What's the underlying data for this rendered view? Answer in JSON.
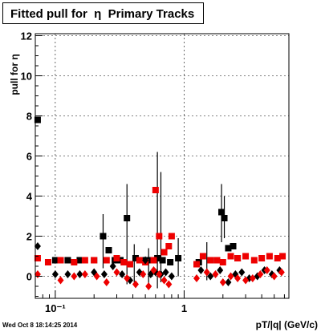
{
  "title": "Fitted pull for  η  Primary Tracks",
  "timestamp": "Wed Oct  8 18:14:25 2014",
  "colors": {
    "series1": "#000000",
    "series2": "#ee0000",
    "grid": "#000000",
    "frame": "#000000"
  },
  "chart_data": {
    "type": "scatter",
    "title": "Fitted pull for  η  Primary Tracks",
    "xlabel": "pT/|q| (GeV/c)",
    "ylabel": "pull for η",
    "xscale": "log",
    "xlim": [
      0.07,
      6.5
    ],
    "ylim": [
      -1.1,
      12.1
    ],
    "xtick_labels": [
      "10⁻¹",
      "1"
    ],
    "ytick_labels": [
      "0",
      "2",
      "4",
      "6",
      "8",
      "10",
      "12"
    ],
    "grid": true,
    "series": [
      {
        "marker": "square",
        "color": "#000000",
        "x": [
          0.073,
          0.1,
          0.125,
          0.155,
          0.2,
          0.235,
          0.26,
          0.29,
          0.32,
          0.36,
          0.42,
          0.5,
          0.55,
          0.62,
          0.68,
          0.78,
          0.9,
          1.3,
          1.6,
          1.95,
          2.05,
          2.2,
          2.4,
          2.6
        ],
        "y": [
          7.8,
          0.8,
          0.8,
          0.8,
          0.8,
          2.0,
          1.3,
          0.8,
          0.8,
          2.9,
          0.9,
          0.8,
          0.8,
          0.9,
          0.8,
          0.7,
          0.9,
          0.7,
          0.8,
          3.2,
          2.9,
          1.4,
          1.5,
          0.9
        ]
      },
      {
        "marker": "square",
        "color": "#ee0000",
        "x": [
          0.073,
          0.088,
          0.11,
          0.14,
          0.17,
          0.2,
          0.25,
          0.3,
          0.34,
          0.38,
          0.45,
          0.5,
          0.58,
          0.6,
          0.64,
          0.7,
          0.76,
          0.8,
          1.25,
          1.4,
          1.6,
          1.8,
          2.0,
          2.3,
          2.6,
          3.0,
          3.5,
          4.0,
          4.6,
          5.3,
          5.8
        ],
        "y": [
          0.9,
          0.7,
          0.8,
          0.7,
          0.8,
          0.8,
          0.8,
          0.9,
          0.7,
          0.6,
          0.8,
          0.7,
          0.8,
          4.3,
          2.0,
          1.2,
          1.5,
          2.0,
          0.6,
          1.0,
          0.8,
          0.8,
          0.7,
          1.0,
          0.9,
          1.0,
          0.8,
          0.9,
          1.0,
          0.9,
          1.0
        ]
      },
      {
        "marker": "diamond",
        "color": "#000000",
        "x": [
          0.073,
          0.1,
          0.125,
          0.155,
          0.2,
          0.24,
          0.28,
          0.33,
          0.38,
          0.45,
          0.5,
          0.55,
          0.6,
          0.66,
          0.72,
          0.8,
          1.35,
          1.6,
          1.9,
          2.2,
          2.5,
          2.8,
          3.2,
          3.7,
          4.2,
          4.8,
          5.5
        ],
        "y": [
          1.5,
          0.1,
          0.1,
          0.1,
          0.2,
          0.1,
          0.5,
          0.1,
          -0.2,
          0.2,
          0.8,
          0.1,
          0.2,
          0.1,
          0.2,
          0.0,
          0.3,
          0.0,
          0.3,
          -0.3,
          0.1,
          0.2,
          -0.1,
          0.0,
          0.3,
          0.1,
          0.3
        ]
      },
      {
        "marker": "diamond",
        "color": "#ee0000",
        "x": [
          0.073,
          0.11,
          0.14,
          0.17,
          0.21,
          0.25,
          0.3,
          0.36,
          0.42,
          0.48,
          0.53,
          0.58,
          0.64,
          0.7,
          0.76,
          1.25,
          1.5,
          1.75,
          2.0,
          2.3,
          2.6,
          3.0,
          3.4,
          3.9,
          4.4,
          5.0,
          5.7
        ],
        "y": [
          0.1,
          -0.2,
          0.0,
          0.1,
          0.0,
          -0.3,
          0.2,
          -0.1,
          -0.4,
          0.1,
          -0.5,
          0.3,
          0.1,
          -0.2,
          -0.4,
          -0.1,
          0.2,
          0.1,
          -0.3,
          0.0,
          -0.1,
          -0.2,
          -0.1,
          0.1,
          0.3,
          0.0,
          0.2
        ]
      }
    ],
    "error_bars": [
      {
        "x": 0.235,
        "low": 0.4,
        "high": 3.1
      },
      {
        "x": 0.36,
        "low": -0.4,
        "high": 4.6
      },
      {
        "x": 0.62,
        "low": -0.6,
        "high": 6.2
      },
      {
        "x": 0.66,
        "low": -0.3,
        "high": 5.2
      },
      {
        "x": 0.9,
        "low": 0.0,
        "high": 1.9
      },
      {
        "x": 1.95,
        "low": 1.7,
        "high": 4.6
      },
      {
        "x": 2.05,
        "low": 1.9,
        "high": 4.0
      },
      {
        "x": 0.41,
        "low": -0.3,
        "high": 1.6
      },
      {
        "x": 0.53,
        "low": -0.4,
        "high": 1.4
      },
      {
        "x": 1.5,
        "low": -0.2,
        "high": 1.7
      }
    ]
  }
}
